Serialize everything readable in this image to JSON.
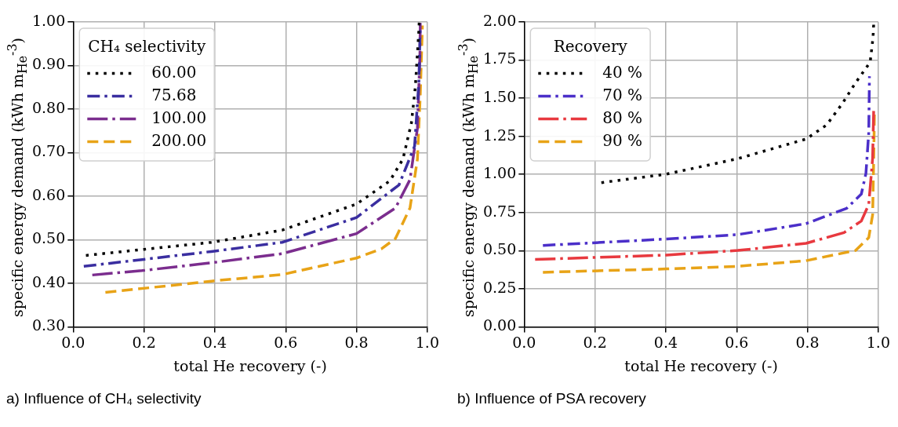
{
  "chart_data": [
    {
      "type": "line",
      "xlabel": "total He recovery (-)",
      "ylabel": "specific energy demand (kWh m$_{He}$$^{-3}$)",
      "legend_title": "CH₄ selectivity",
      "legend": "top left",
      "grid": true,
      "xlim": [
        0,
        1
      ],
      "xticks": [
        {
          "value": 0,
          "label": "0.0"
        },
        {
          "value": 0.2,
          "label": "0.2"
        },
        {
          "value": 0.4,
          "label": "0.4"
        },
        {
          "value": 0.6,
          "label": "0.6"
        },
        {
          "value": 0.8,
          "label": "0.8"
        },
        {
          "value": 1,
          "label": "1.0"
        }
      ],
      "ylim": [
        0.3,
        1
      ],
      "yticks": [
        {
          "value": 0.3,
          "label": "0.30"
        },
        {
          "value": 0.4,
          "label": "0.40"
        },
        {
          "value": 0.5,
          "label": "0.50"
        },
        {
          "value": 0.6,
          "label": "0.60"
        },
        {
          "value": 0.7,
          "label": "0.70"
        },
        {
          "value": 0.8,
          "label": "0.80"
        },
        {
          "value": 0.9,
          "label": "0.90"
        },
        {
          "value": 1,
          "label": "1.00"
        }
      ],
      "annotations": [
        "a) Influence of CH₄ selectivity"
      ],
      "series": [
        {
          "name": "60.00",
          "color": "#000000",
          "line_style": "dotted",
          "x": [
            0.036,
            0.2,
            0.39,
            0.59,
            0.8,
            0.894,
            0.931,
            0.955,
            0.966,
            0.976,
            0.977
          ],
          "values": [
            0.464,
            0.478,
            0.494,
            0.522,
            0.582,
            0.635,
            0.685,
            0.768,
            0.85,
            0.98,
            1.0
          ]
        },
        {
          "name": "75.68",
          "color": "#3a2ea0",
          "line_style": "dashdot",
          "x": [
            0.03,
            0.2,
            0.39,
            0.59,
            0.8,
            0.92,
            0.964,
            0.976,
            0.98
          ],
          "values": [
            0.439,
            0.455,
            0.473,
            0.494,
            0.551,
            0.626,
            0.715,
            0.862,
            0.99
          ]
        },
        {
          "name": "100.00",
          "color": "#7b2d8e",
          "line_style": "longdashdot",
          "x": [
            0.054,
            0.194,
            0.39,
            0.59,
            0.8,
            0.91,
            0.951,
            0.972,
            0.979,
            0.98
          ],
          "values": [
            0.419,
            0.429,
            0.447,
            0.468,
            0.514,
            0.573,
            0.638,
            0.756,
            0.921,
            0.998
          ]
        },
        {
          "name": "200.00",
          "color": "#e8a317",
          "line_style": "dashed",
          "x": [
            0.091,
            0.39,
            0.59,
            0.8,
            0.87,
            0.91,
            0.951,
            0.972,
            0.98,
            0.986
          ],
          "values": [
            0.379,
            0.405,
            0.42,
            0.458,
            0.479,
            0.503,
            0.573,
            0.685,
            0.833,
            0.992
          ]
        }
      ]
    },
    {
      "type": "line",
      "xlabel": "total He recovery (-)",
      "ylabel": "specific energy demand (kWh m$_{He}$$^{-3}$)",
      "legend_title": "Recovery",
      "legend": "top left",
      "grid": true,
      "xlim": [
        0,
        1
      ],
      "xticks": [
        {
          "value": 0,
          "label": "0.0"
        },
        {
          "value": 0.2,
          "label": "0.2"
        },
        {
          "value": 0.4,
          "label": "0.4"
        },
        {
          "value": 0.6,
          "label": "0.6"
        },
        {
          "value": 0.8,
          "label": "0.8"
        },
        {
          "value": 1,
          "label": "1.0"
        }
      ],
      "ylim": [
        0,
        2
      ],
      "yticks": [
        {
          "value": 0,
          "label": "0.00"
        },
        {
          "value": 0.25,
          "label": "0.25"
        },
        {
          "value": 0.5,
          "label": "0.50"
        },
        {
          "value": 0.75,
          "label": "0.75"
        },
        {
          "value": 1,
          "label": "1.00"
        },
        {
          "value": 1.25,
          "label": "1.25"
        },
        {
          "value": 1.5,
          "label": "1.50"
        },
        {
          "value": 1.75,
          "label": "1.75"
        },
        {
          "value": 2,
          "label": "2.00"
        }
      ],
      "annotations": [
        "b) Influence of PSA recovery"
      ],
      "series": [
        {
          "name": "40 %",
          "color": "#000000",
          "line_style": "dotted",
          "x": [
            0.218,
            0.402,
            0.603,
            0.796,
            0.854,
            0.899,
            0.936,
            0.977,
            0.985,
            0.987
          ],
          "values": [
            0.946,
            1.002,
            1.103,
            1.232,
            1.324,
            1.467,
            1.602,
            1.736,
            1.896,
            1.988
          ]
        },
        {
          "name": "70 %",
          "color": "#4b2fc9",
          "line_style": "dashdot",
          "x": [
            0.053,
            0.402,
            0.603,
            0.796,
            0.911,
            0.952,
            0.965,
            0.973,
            0.975
          ],
          "values": [
            0.534,
            0.576,
            0.605,
            0.677,
            0.778,
            0.871,
            1.005,
            1.274,
            1.644
          ]
        },
        {
          "name": "80 %",
          "color": "#e8393f",
          "line_style": "longdashdot",
          "x": [
            0.031,
            0.402,
            0.603,
            0.796,
            0.903,
            0.952,
            0.973,
            0.984,
            0.987
          ],
          "values": [
            0.442,
            0.471,
            0.501,
            0.548,
            0.618,
            0.694,
            0.803,
            1.106,
            1.425
          ]
        },
        {
          "name": "90 %",
          "color": "#e8a317",
          "line_style": "dashed",
          "x": [
            0.053,
            0.402,
            0.603,
            0.796,
            0.936,
            0.973,
            0.984,
            0.987,
            0.989
          ],
          "values": [
            0.358,
            0.38,
            0.397,
            0.434,
            0.501,
            0.585,
            0.736,
            1.106,
            1.408
          ]
        }
      ]
    }
  ]
}
